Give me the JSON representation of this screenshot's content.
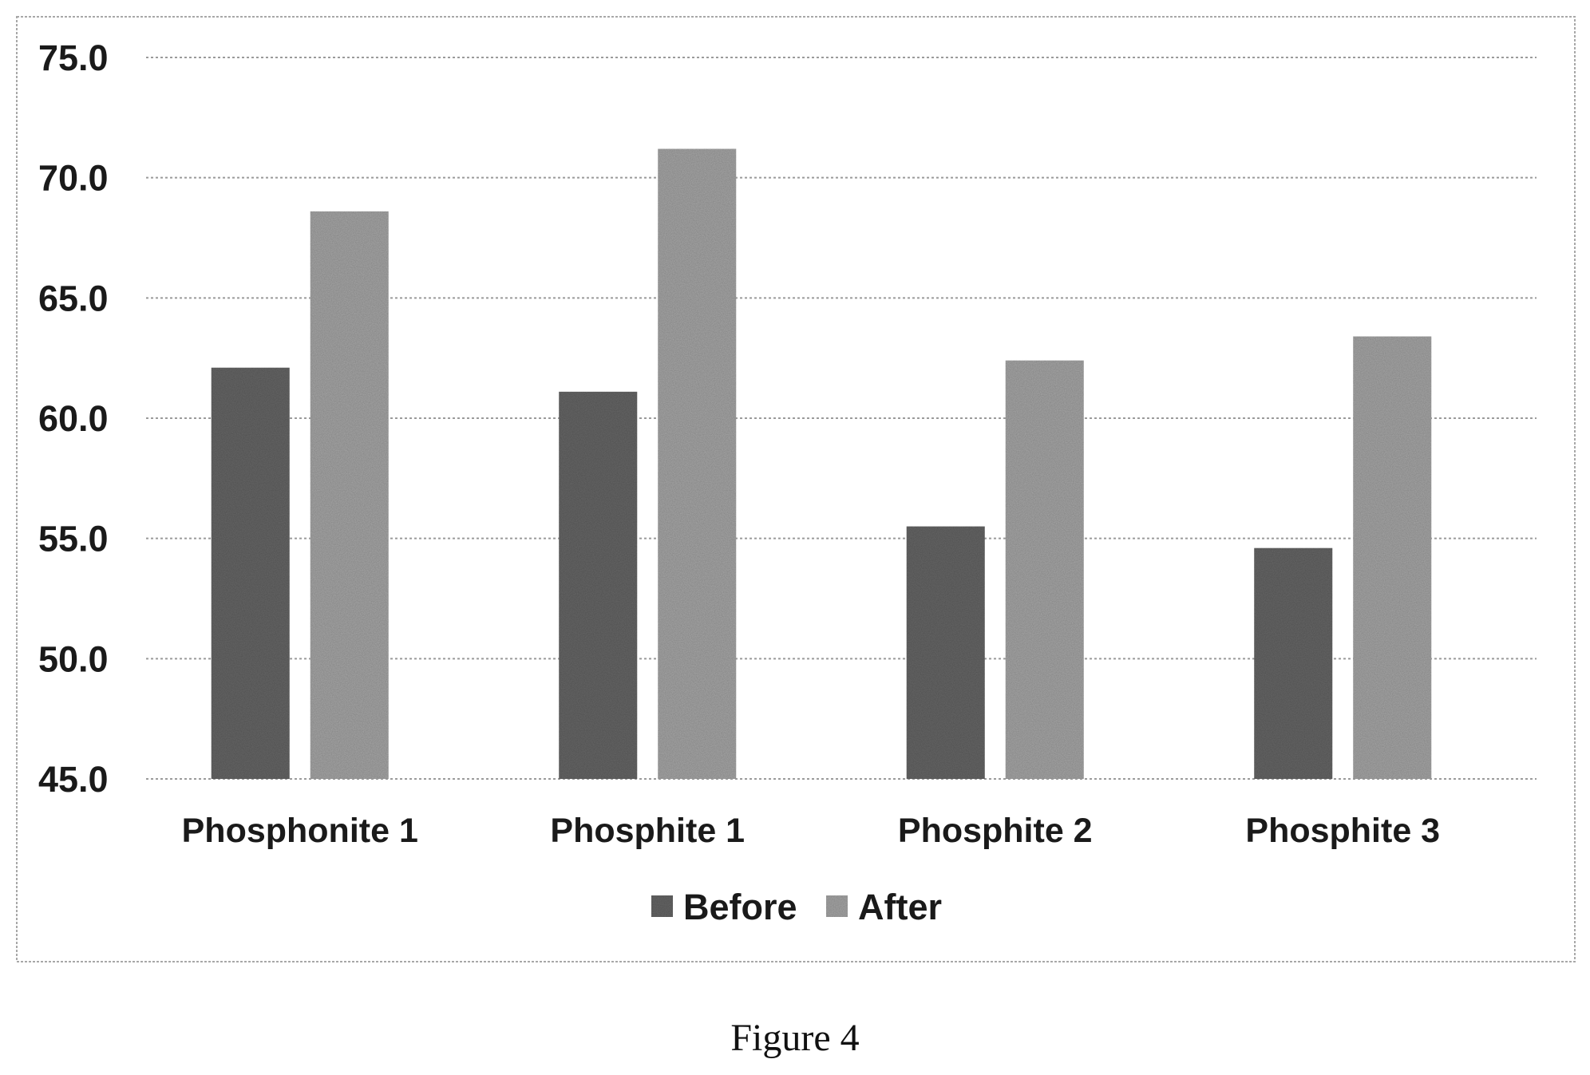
{
  "caption": "Figure 4",
  "chart_data": {
    "type": "bar",
    "categories": [
      "Phosphonite 1",
      "Phosphite 1",
      "Phosphite 2",
      "Phosphite 3"
    ],
    "series": [
      {
        "name": "Before",
        "values": [
          62.1,
          61.1,
          55.5,
          54.6
        ],
        "color": "#686868"
      },
      {
        "name": "After",
        "values": [
          68.6,
          71.2,
          62.4,
          63.4
        ],
        "color": "#a7a7a7"
      }
    ],
    "y_ticks": [
      "45.0",
      "50.0",
      "55.0",
      "60.0",
      "65.0",
      "70.0",
      "75.0"
    ],
    "ylim": [
      45,
      75
    ],
    "grid": true,
    "legend_position": "bottom"
  }
}
